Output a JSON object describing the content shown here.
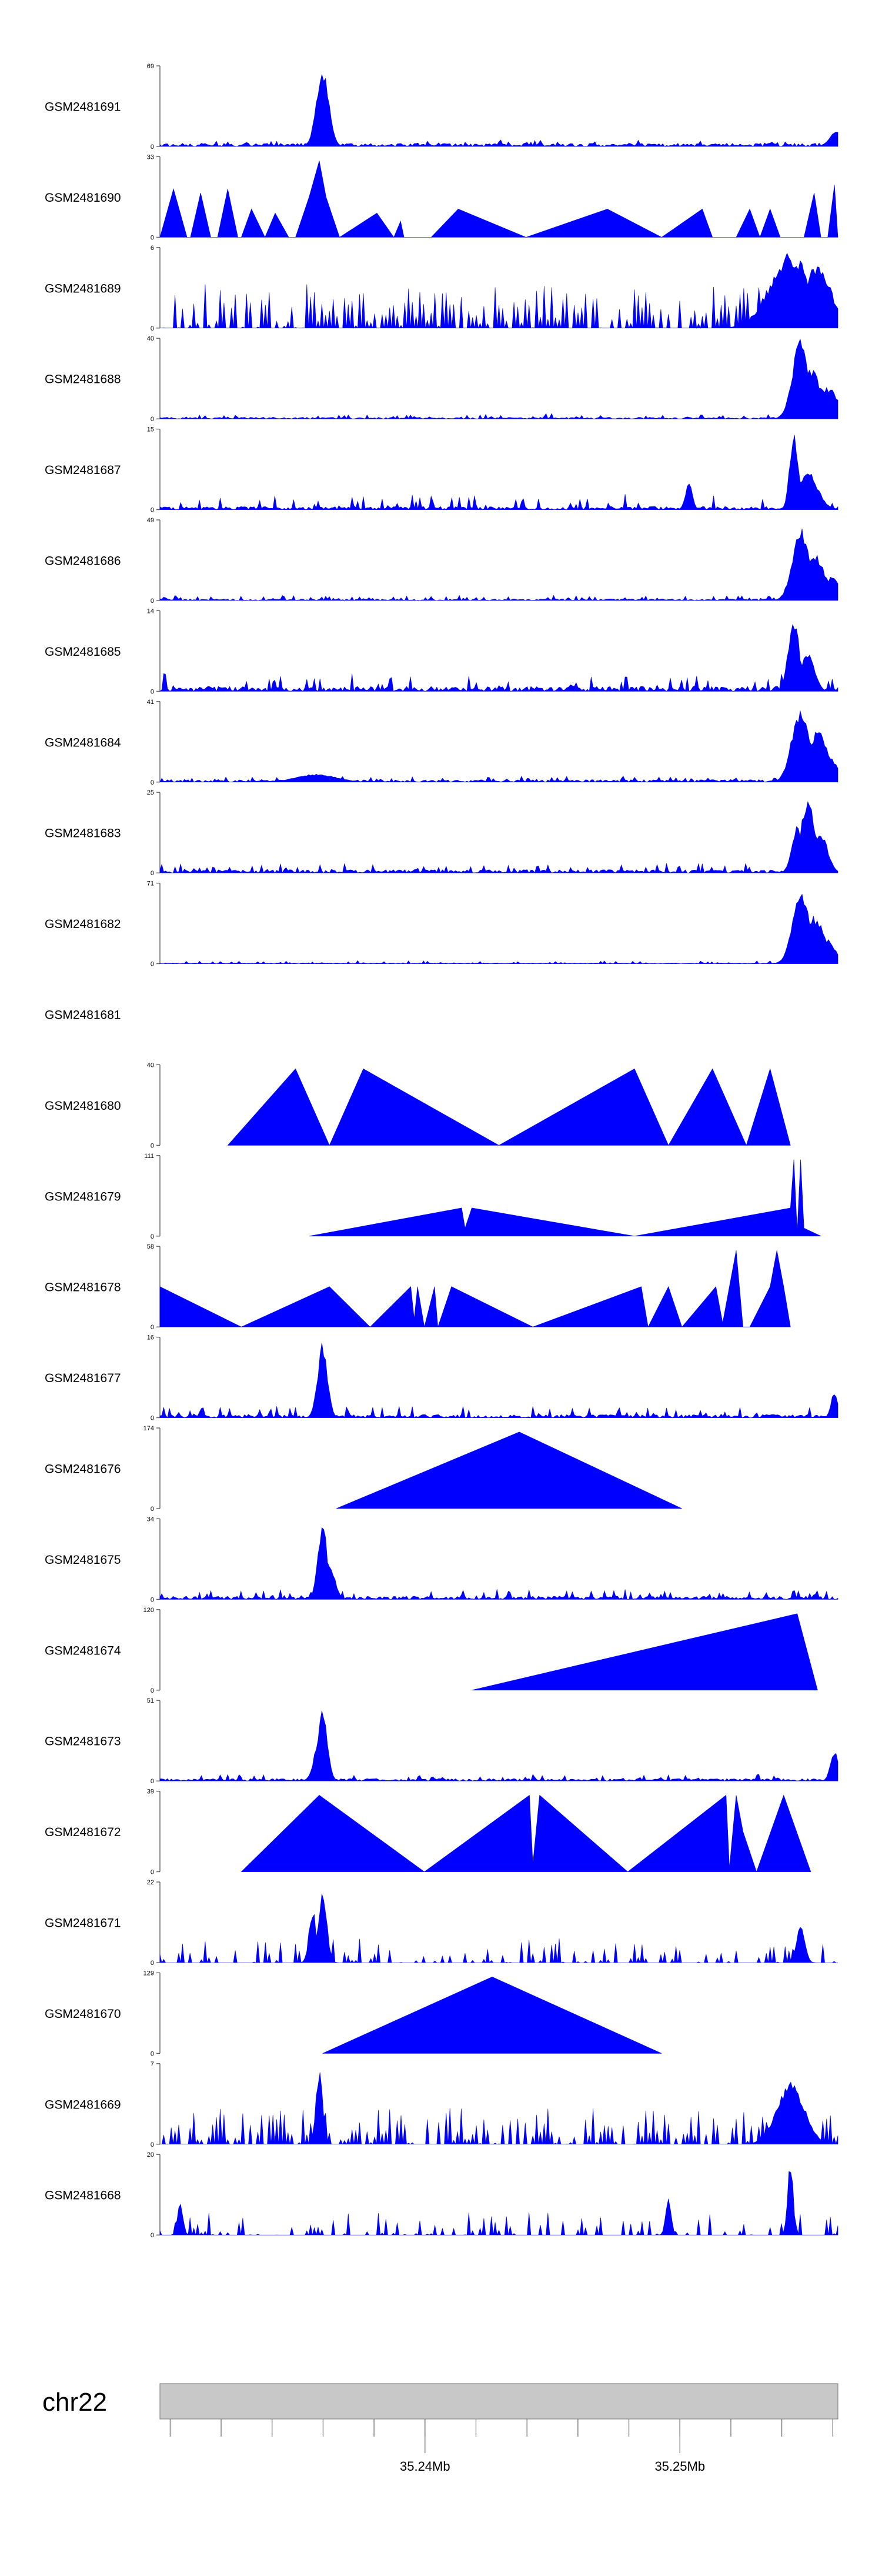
{
  "chart_data": {
    "type": "area",
    "title": "",
    "color": "#0000ff",
    "tracks": [
      {
        "name": "GSM2481691",
        "ymax": 69,
        "ymin": 0,
        "shape": "noise",
        "base": 0.04,
        "jitter": 0.06,
        "peaks": [
          [
            0.24,
            0.009,
            1.0
          ],
          [
            0.235,
            0.008,
            0.5
          ],
          [
            0.998,
            0.01,
            0.2
          ]
        ]
      },
      {
        "name": "GSM2481690",
        "ymax": 33,
        "ymin": 0,
        "shape": "tri",
        "points": [
          [
            0.0,
            0
          ],
          [
            0.02,
            0.6
          ],
          [
            0.04,
            0
          ],
          [
            0.045,
            0
          ],
          [
            0.06,
            0.55
          ],
          [
            0.075,
            0
          ],
          [
            0.085,
            0
          ],
          [
            0.1,
            0.6
          ],
          [
            0.115,
            0
          ],
          [
            0.12,
            0
          ],
          [
            0.135,
            0.35
          ],
          [
            0.155,
            0
          ],
          [
            0.17,
            0.3
          ],
          [
            0.19,
            0
          ],
          [
            0.2,
            0
          ],
          [
            0.22,
            0.5
          ],
          [
            0.235,
            0.95
          ],
          [
            0.245,
            0.5
          ],
          [
            0.265,
            0
          ],
          [
            0.32,
            0.3
          ],
          [
            0.345,
            0
          ],
          [
            0.355,
            0.2
          ],
          [
            0.36,
            0
          ],
          [
            0.4,
            0
          ],
          [
            0.44,
            0.35
          ],
          [
            0.54,
            0
          ],
          [
            0.66,
            0.35
          ],
          [
            0.74,
            0
          ],
          [
            0.8,
            0.35
          ],
          [
            0.815,
            0
          ],
          [
            0.85,
            0
          ],
          [
            0.87,
            0.35
          ],
          [
            0.885,
            0
          ],
          [
            0.9,
            0.35
          ],
          [
            0.915,
            0
          ],
          [
            0.95,
            0
          ],
          [
            0.965,
            0.55
          ],
          [
            0.975,
            0
          ],
          [
            0.985,
            0
          ],
          [
            0.995,
            0.65
          ],
          [
            1.0,
            0
          ]
        ]
      },
      {
        "name": "GSM2481689",
        "ymax": 6,
        "ymin": 0,
        "shape": "spiky",
        "density": 0.75,
        "amp": 0.55,
        "peaks": [
          [
            0.93,
            0.03,
            0.95
          ],
          [
            0.97,
            0.02,
            0.8
          ]
        ]
      },
      {
        "name": "GSM2481688",
        "ymax": 40,
        "ymin": 0,
        "shape": "noise",
        "base": 0.02,
        "jitter": 0.05,
        "peaks": [
          [
            0.945,
            0.012,
            1.0
          ],
          [
            0.96,
            0.015,
            0.65
          ],
          [
            0.985,
            0.015,
            0.4
          ]
        ]
      },
      {
        "name": "GSM2481687",
        "ymax": 15,
        "ymin": 0,
        "shape": "noise",
        "base": 0.04,
        "jitter": 0.16,
        "peaks": [
          [
            0.935,
            0.006,
            1.0
          ],
          [
            0.955,
            0.015,
            0.5
          ],
          [
            0.78,
            0.005,
            0.35
          ]
        ]
      },
      {
        "name": "GSM2481686",
        "ymax": 49,
        "ymin": 0,
        "shape": "noise",
        "base": 0.02,
        "jitter": 0.05,
        "peaks": [
          [
            0.945,
            0.012,
            0.95
          ],
          [
            0.965,
            0.015,
            0.6
          ],
          [
            0.99,
            0.012,
            0.3
          ]
        ]
      },
      {
        "name": "GSM2481685",
        "ymax": 14,
        "ymin": 0,
        "shape": "noise",
        "base": 0.06,
        "jitter": 0.18,
        "peaks": [
          [
            0.935,
            0.008,
            0.95
          ],
          [
            0.955,
            0.01,
            0.5
          ]
        ]
      },
      {
        "name": "GSM2481684",
        "ymax": 41,
        "ymin": 0,
        "shape": "noise",
        "base": 0.03,
        "jitter": 0.05,
        "peaks": [
          [
            0.945,
            0.013,
            0.95
          ],
          [
            0.97,
            0.015,
            0.65
          ],
          [
            0.99,
            0.01,
            0.3
          ],
          [
            0.23,
            0.03,
            0.1
          ]
        ]
      },
      {
        "name": "GSM2481683",
        "ymax": 25,
        "ymin": 0,
        "shape": "noise",
        "base": 0.04,
        "jitter": 0.1,
        "peaks": [
          [
            0.955,
            0.01,
            0.95
          ],
          [
            0.94,
            0.008,
            0.6
          ],
          [
            0.975,
            0.01,
            0.5
          ]
        ]
      },
      {
        "name": "GSM2481682",
        "ymax": 71,
        "ymin": 0,
        "shape": "noise",
        "base": 0.01,
        "jitter": 0.03,
        "peaks": [
          [
            0.945,
            0.012,
            0.95
          ],
          [
            0.965,
            0.015,
            0.6
          ],
          [
            0.985,
            0.012,
            0.3
          ]
        ]
      },
      {
        "name": "GSM2481681",
        "shape": "empty"
      },
      {
        "name": "GSM2481680",
        "ymax": 40,
        "ymin": 0,
        "shape": "tri",
        "points": [
          [
            0.1,
            0
          ],
          [
            0.2,
            0.95
          ],
          [
            0.25,
            0
          ],
          [
            0.3,
            0.95
          ],
          [
            0.5,
            0
          ],
          [
            0.7,
            0.95
          ],
          [
            0.75,
            0
          ],
          [
            0.815,
            0.95
          ],
          [
            0.865,
            0
          ],
          [
            0.9,
            0.95
          ],
          [
            0.93,
            0
          ]
        ]
      },
      {
        "name": "GSM2481679",
        "ymax": 111,
        "ymin": 0,
        "shape": "tri",
        "points": [
          [
            0.22,
            0
          ],
          [
            0.445,
            0.35
          ],
          [
            0.45,
            0.1
          ],
          [
            0.46,
            0.35
          ],
          [
            0.7,
            0
          ],
          [
            0.93,
            0.35
          ],
          [
            0.935,
            0.95
          ],
          [
            0.94,
            0.05
          ],
          [
            0.945,
            0.95
          ],
          [
            0.95,
            0.1
          ],
          [
            0.975,
            0
          ]
        ]
      },
      {
        "name": "GSM2481678",
        "ymax": 58,
        "ymin": 0,
        "shape": "tri",
        "points": [
          [
            0.0,
            0
          ],
          [
            0.0,
            0.5
          ],
          [
            0.12,
            0
          ],
          [
            0.25,
            0.5
          ],
          [
            0.31,
            0
          ],
          [
            0.37,
            0.5
          ],
          [
            0.375,
            0.1
          ],
          [
            0.38,
            0.5
          ],
          [
            0.39,
            0
          ],
          [
            0.405,
            0.5
          ],
          [
            0.41,
            0
          ],
          [
            0.43,
            0.5
          ],
          [
            0.55,
            0
          ],
          [
            0.71,
            0.5
          ],
          [
            0.72,
            0
          ],
          [
            0.75,
            0.5
          ],
          [
            0.77,
            0
          ],
          [
            0.82,
            0.5
          ],
          [
            0.83,
            0.05
          ],
          [
            0.85,
            0.95
          ],
          [
            0.86,
            0
          ],
          [
            0.87,
            0
          ],
          [
            0.9,
            0.5
          ],
          [
            0.91,
            0.95
          ],
          [
            0.92,
            0.5
          ],
          [
            0.93,
            0
          ]
        ]
      },
      {
        "name": "GSM2481677",
        "ymax": 16,
        "ymin": 0,
        "shape": "noise",
        "base": 0.04,
        "jitter": 0.12,
        "peaks": [
          [
            0.24,
            0.007,
            0.95
          ],
          [
            0.235,
            0.006,
            0.5
          ],
          [
            0.995,
            0.005,
            0.35
          ]
        ]
      },
      {
        "name": "GSM2481676",
        "ymax": 174,
        "ymin": 0,
        "shape": "tri",
        "points": [
          [
            0.26,
            0
          ],
          [
            0.53,
            0.95
          ],
          [
            0.77,
            0
          ]
        ]
      },
      {
        "name": "GSM2481675",
        "ymax": 34,
        "ymin": 0,
        "shape": "noise",
        "base": 0.04,
        "jitter": 0.1,
        "peaks": [
          [
            0.24,
            0.007,
            0.95
          ],
          [
            0.25,
            0.008,
            0.45
          ]
        ]
      },
      {
        "name": "GSM2481674",
        "ymax": 120,
        "ymin": 0,
        "shape": "tri",
        "points": [
          [
            0.46,
            0
          ],
          [
            0.94,
            0.95
          ],
          [
            0.97,
            0
          ]
        ]
      },
      {
        "name": "GSM2481673",
        "ymax": 51,
        "ymin": 0,
        "shape": "noise",
        "base": 0.03,
        "jitter": 0.06,
        "peaks": [
          [
            0.24,
            0.007,
            0.95
          ],
          [
            0.235,
            0.008,
            0.5
          ],
          [
            0.995,
            0.006,
            0.38
          ]
        ]
      },
      {
        "name": "GSM2481672",
        "ymax": 39,
        "ymin": 0,
        "shape": "tri",
        "points": [
          [
            0.12,
            0
          ],
          [
            0.235,
            0.95
          ],
          [
            0.39,
            0
          ],
          [
            0.545,
            0.95
          ],
          [
            0.55,
            0.1
          ],
          [
            0.56,
            0.95
          ],
          [
            0.69,
            0
          ],
          [
            0.835,
            0.95
          ],
          [
            0.84,
            0.05
          ],
          [
            0.85,
            0.95
          ],
          [
            0.86,
            0.5
          ],
          [
            0.88,
            0
          ],
          [
            0.92,
            0.95
          ],
          [
            0.96,
            0
          ]
        ]
      },
      {
        "name": "GSM2481671",
        "ymax": 22,
        "ymin": 0,
        "shape": "spiky",
        "density": 0.55,
        "amp": 0.3,
        "peaks": [
          [
            0.24,
            0.006,
            0.95
          ],
          [
            0.225,
            0.005,
            0.7
          ],
          [
            0.945,
            0.006,
            0.5
          ]
        ]
      },
      {
        "name": "GSM2481670",
        "ymax": 129,
        "ymin": 0,
        "shape": "tri",
        "points": [
          [
            0.24,
            0
          ],
          [
            0.49,
            0.95
          ],
          [
            0.74,
            0
          ]
        ]
      },
      {
        "name": "GSM2481669",
        "ymax": 7,
        "ymin": 0,
        "shape": "spiky",
        "density": 0.8,
        "amp": 0.45,
        "peaks": [
          [
            0.235,
            0.005,
            0.95
          ],
          [
            0.93,
            0.02,
            0.8
          ]
        ]
      },
      {
        "name": "GSM2481668",
        "ymax": 20,
        "ymin": 0,
        "shape": "spiky",
        "density": 0.45,
        "amp": 0.28,
        "peaks": [
          [
            0.93,
            0.004,
            0.95
          ],
          [
            0.75,
            0.004,
            0.45
          ],
          [
            0.03,
            0.004,
            0.4
          ]
        ]
      }
    ],
    "genome_axis": {
      "chromosome": "chr22",
      "range_mb": [
        35.2296,
        35.2562
      ],
      "tick_labels": [
        {
          "value": 35.24,
          "label": "35.24Mb"
        },
        {
          "value": 35.25,
          "label": "35.25Mb"
        }
      ]
    }
  }
}
